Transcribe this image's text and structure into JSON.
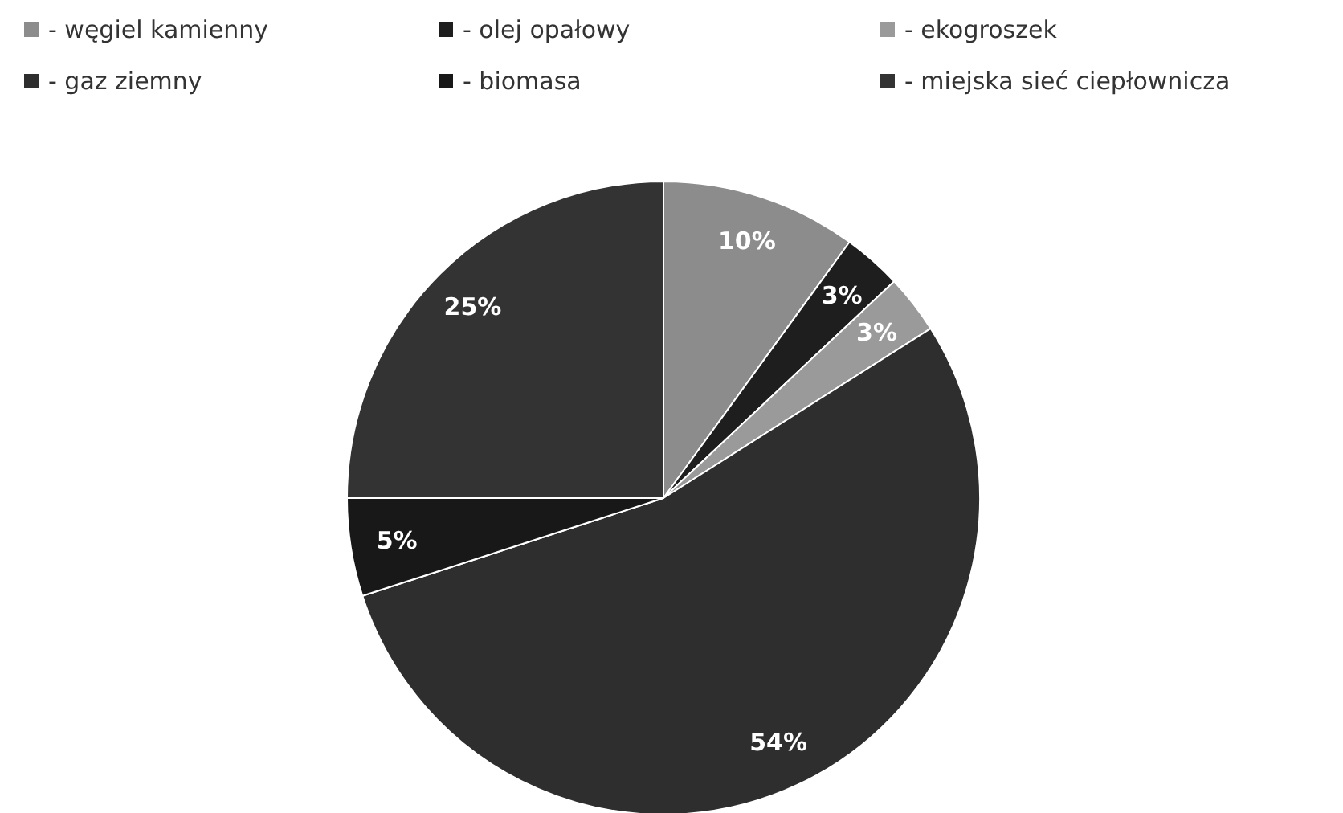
{
  "chart_data": {
    "type": "pie",
    "categories": [
      "- węgiel kamienny",
      "- olej opałowy",
      "- ekogroszek",
      "- gaz ziemny",
      "- biomasa",
      "- miejska sieć ciepłownicza"
    ],
    "values": [
      10,
      3,
      3,
      54,
      5,
      25
    ],
    "colors": [
      "#8c8c8c",
      "#1e1e1e",
      "#9a9a9a",
      "#2e2e2e",
      "#181818",
      "#333333"
    ],
    "value_labels": [
      "10%",
      "3%",
      "3%",
      "54%",
      "5%",
      "25%"
    ],
    "legend": "top left"
  }
}
